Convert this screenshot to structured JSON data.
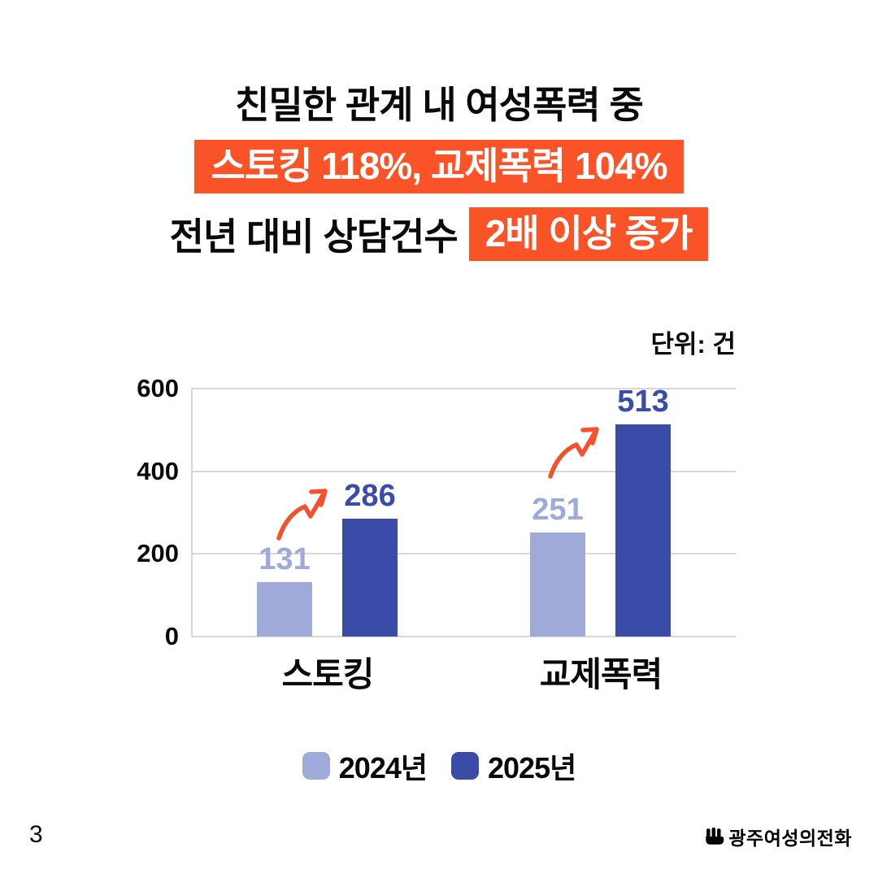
{
  "title": {
    "line1": "친밀한 관계 내 여성폭력 중",
    "line2_highlight": "스토킹 118%, 교제폭력 104%",
    "line3_prefix": "전년 대비 상담건수",
    "line3_highlight": "2배 이상 증가"
  },
  "chart_data": {
    "type": "bar",
    "unit_label": "단위: 건",
    "categories": [
      "스토킹",
      "교제폭력"
    ],
    "series": [
      {
        "name": "2024년",
        "color": "#9FAAD9",
        "values": [
          131,
          251
        ]
      },
      {
        "name": "2025년",
        "color": "#3B4BA8",
        "values": [
          286,
          513
        ]
      }
    ],
    "ylim": [
      0,
      600
    ],
    "yticks": [
      0,
      200,
      400,
      600
    ],
    "grid": true,
    "legend_position": "bottom",
    "annotations": [
      "orange hand-drawn increase arrow from 2024 bar to 2025 bar in each category"
    ]
  },
  "colors": {
    "accent_orange": "#F95327",
    "arrow_orange": "#F4512C",
    "series_2024": "#9FAAD9",
    "series_2025": "#3B4BA8",
    "gridline": "#D8D8D8",
    "text": "#0A0A0A"
  },
  "footer": {
    "page_number": "3",
    "logo_text": "광주여성의전화"
  }
}
